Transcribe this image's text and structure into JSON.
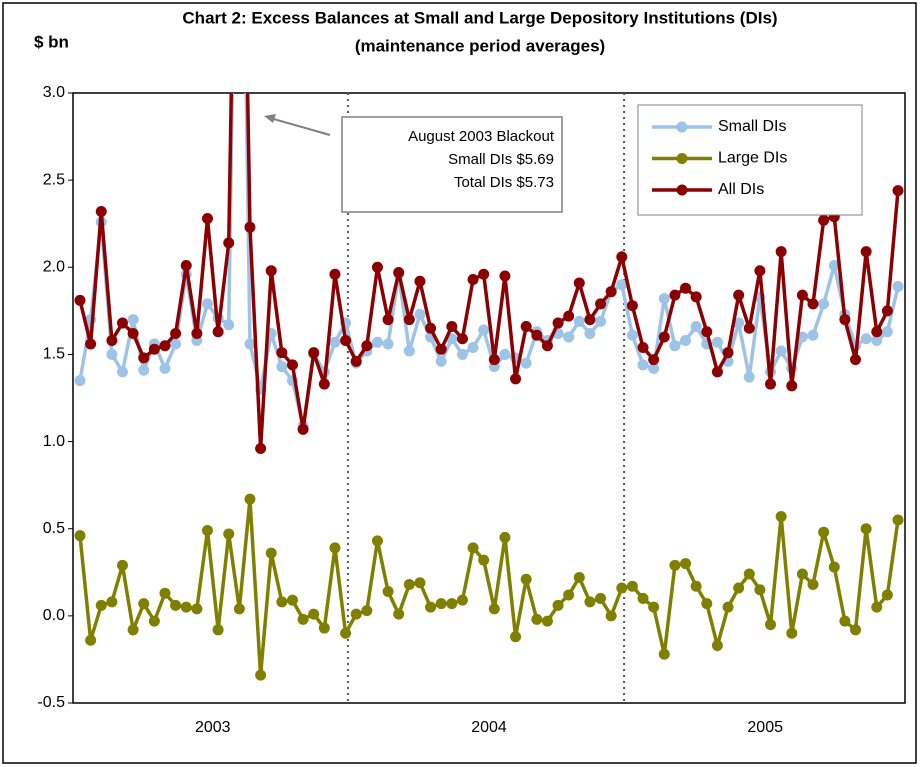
{
  "chart_data": {
    "type": "line",
    "title": "Chart 2:  Excess Balances at Small and Large Depository Institutions (DIs)",
    "subtitle": "(maintenance period averages)",
    "y_label": "$ bn",
    "year_labels": [
      "2003",
      "2004",
      "2005"
    ],
    "annotation": [
      "August 2003 Blackout",
      "Small DIs $5.69",
      "Total DIs $5.73"
    ],
    "ylim": [
      -0.5,
      3.0
    ],
    "yticks": [
      -0.5,
      {
        "value": 0,
        "label": "0.0"
      },
      0.5,
      {
        "value": 1,
        "label": "1.0"
      },
      1.5,
      {
        "value": 2,
        "label": "2.0"
      },
      2.5,
      {
        "value": 3,
        "label": "3.0"
      }
    ],
    "legend": "top-right",
    "series": [
      {
        "name": "Small DIs",
        "color": "#9dc3e6",
        "values": [
          1.35,
          1.7,
          2.26,
          1.5,
          1.4,
          1.7,
          1.41,
          1.56,
          1.42,
          1.56,
          1.96,
          1.58,
          1.79,
          1.71,
          1.67,
          5.69,
          1.56,
          1.3,
          1.62,
          1.43,
          1.35,
          1.09,
          1.5,
          1.4,
          1.57,
          1.68,
          1.45,
          1.52,
          1.57,
          1.56,
          1.96,
          1.52,
          1.73,
          1.6,
          1.46,
          1.59,
          1.5,
          1.54,
          1.64,
          1.43,
          1.5,
          1.48,
          1.45,
          1.63,
          1.58,
          1.62,
          1.6,
          1.69,
          1.62,
          1.69,
          1.86,
          1.9,
          1.61,
          1.44,
          1.42,
          1.82,
          1.55,
          1.58,
          1.66,
          1.56,
          1.57,
          1.46,
          1.68,
          1.37,
          1.83,
          1.4,
          1.52,
          1.42,
          1.6,
          1.61,
          1.79,
          2.01,
          1.73,
          1.55,
          1.59,
          1.58,
          1.63,
          1.89
        ]
      },
      {
        "name": "Large DIs",
        "color": "#808000",
        "values": [
          0.46,
          -0.14,
          0.06,
          0.08,
          0.29,
          -0.08,
          0.07,
          -0.03,
          0.13,
          0.06,
          0.05,
          0.04,
          0.49,
          -0.08,
          0.47,
          0.04,
          0.67,
          -0.34,
          0.36,
          0.08,
          0.09,
          -0.02,
          0.01,
          -0.07,
          0.39,
          -0.1,
          0.01,
          0.03,
          0.43,
          0.14,
          0.01,
          0.18,
          0.19,
          0.05,
          0.07,
          0.07,
          0.09,
          0.39,
          0.32,
          0.04,
          0.45,
          -0.12,
          0.21,
          -0.02,
          -0.03,
          0.06,
          0.12,
          0.22,
          0.08,
          0.1,
          0.0,
          0.16,
          0.17,
          0.1,
          0.05,
          -0.22,
          0.29,
          0.3,
          0.17,
          0.07,
          -0.17,
          0.05,
          0.16,
          0.24,
          0.15,
          -0.05,
          0.57,
          -0.1,
          0.24,
          0.18,
          0.48,
          0.28,
          -0.03,
          -0.08,
          0.5,
          0.05,
          0.12,
          0.55
        ]
      },
      {
        "name": "All DIs",
        "color": "#8b0000",
        "values": [
          1.81,
          1.56,
          2.32,
          1.58,
          1.68,
          1.62,
          1.48,
          1.53,
          1.55,
          1.62,
          2.01,
          1.62,
          2.28,
          1.63,
          2.14,
          5.73,
          2.23,
          0.96,
          1.98,
          1.51,
          1.44,
          1.07,
          1.51,
          1.33,
          1.96,
          1.58,
          1.46,
          1.55,
          2.0,
          1.7,
          1.97,
          1.7,
          1.92,
          1.65,
          1.53,
          1.66,
          1.59,
          1.93,
          1.96,
          1.47,
          1.95,
          1.36,
          1.66,
          1.61,
          1.55,
          1.68,
          1.72,
          1.91,
          1.7,
          1.79,
          1.86,
          2.06,
          1.78,
          1.54,
          1.47,
          1.6,
          1.84,
          1.88,
          1.83,
          1.63,
          1.4,
          1.51,
          1.84,
          1.65,
          1.98,
          1.33,
          2.09,
          1.32,
          1.84,
          1.79,
          2.27,
          2.29,
          1.7,
          1.47,
          2.09,
          1.63,
          1.75,
          2.44
        ]
      }
    ]
  }
}
